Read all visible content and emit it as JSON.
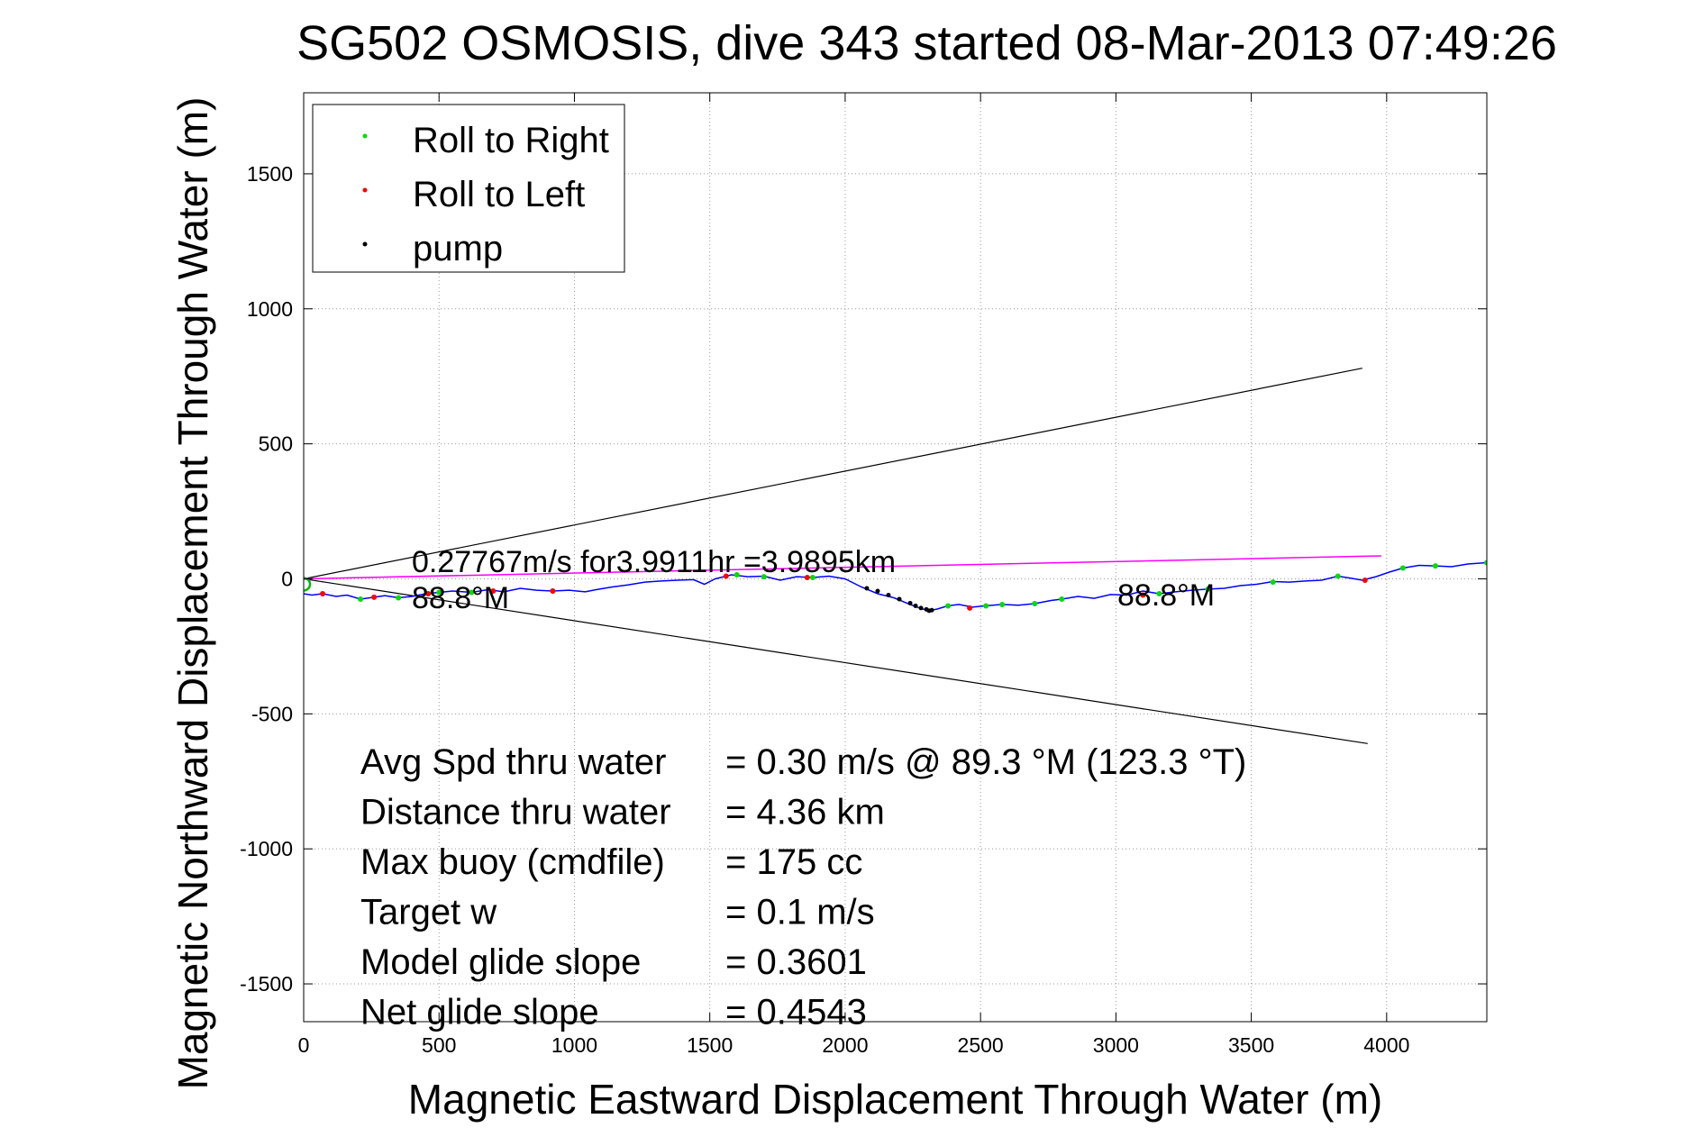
{
  "chart_data": {
    "type": "line",
    "title": "SG502 OSMOSIS, dive 343 started 08-Mar-2013 07:49:26",
    "xlabel": "Magnetic Eastward Displacement Through Water (m)",
    "ylabel": "Magnetic Northward Displacement Through Water (m)",
    "xlim": [
      0,
      4370
    ],
    "ylim": [
      -1640,
      1800
    ],
    "xticks": [
      0,
      500,
      1000,
      1500,
      2000,
      2500,
      3000,
      3500,
      4000
    ],
    "yticks": [
      -1500,
      -1000,
      -500,
      0,
      500,
      1000,
      1500
    ],
    "grid": true,
    "legend_position": "top-left",
    "legend": [
      {
        "label": "Roll to Right",
        "color": "#00dd00"
      },
      {
        "label": "Roll to Left",
        "color": "#ff0000"
      },
      {
        "label": "pump",
        "color": "#000000"
      }
    ],
    "colors": {
      "track": "#0000ff",
      "roll_right": "#00dd00",
      "roll_left": "#ff0000",
      "pump": "#000000",
      "heading": "#ff00ff",
      "cone": "#000000",
      "start_marker": "#00bb00"
    },
    "track": {
      "x": [
        0,
        30,
        70,
        120,
        160,
        210,
        260,
        300,
        350,
        400,
        450,
        500,
        550,
        620,
        680,
        740,
        800,
        860,
        920,
        980,
        1040,
        1080,
        1140,
        1200,
        1260,
        1320,
        1380,
        1440,
        1480,
        1520,
        1580,
        1640,
        1700,
        1760,
        1820,
        1880,
        1940,
        2000,
        2060,
        2120,
        2180,
        2240,
        2280,
        2310,
        2340,
        2380,
        2420,
        2470,
        2520,
        2580,
        2640,
        2700,
        2760,
        2800,
        2860,
        2920,
        2980,
        3040,
        3100,
        3160,
        3220,
        3280,
        3340,
        3400,
        3460,
        3520,
        3580,
        3640,
        3700,
        3760,
        3820,
        3870,
        3910,
        3960,
        4010,
        4060,
        4120,
        4180,
        4240,
        4300,
        4370
      ],
      "y": [
        -55,
        -60,
        -55,
        -65,
        -60,
        -75,
        -68,
        -62,
        -70,
        -65,
        -55,
        -50,
        -45,
        -50,
        -40,
        -48,
        -35,
        -42,
        -45,
        -42,
        -48,
        -40,
        -30,
        -22,
        -12,
        -8,
        -5,
        -3,
        -20,
        0,
        15,
        8,
        10,
        -5,
        8,
        5,
        10,
        0,
        -30,
        -55,
        -70,
        -95,
        -110,
        -118,
        -112,
        -100,
        -95,
        -105,
        -100,
        -95,
        -98,
        -92,
        -80,
        -75,
        -65,
        -72,
        -58,
        -60,
        -45,
        -55,
        -48,
        -42,
        -38,
        -35,
        -25,
        -20,
        -10,
        -12,
        -8,
        -5,
        10,
        2,
        -5,
        8,
        25,
        40,
        50,
        48,
        45,
        55,
        60
      ]
    },
    "roll_right": {
      "x": [
        210,
        350,
        500,
        620,
        920,
        1600,
        1700,
        1880,
        2380,
        2520,
        2580,
        2700,
        2800,
        3160,
        3340,
        3580,
        3820,
        4060,
        4180,
        4370
      ],
      "y": [
        -75,
        -70,
        -50,
        -50,
        -45,
        15,
        8,
        5,
        -100,
        -100,
        -95,
        -92,
        -75,
        -55,
        -38,
        -12,
        10,
        40,
        48,
        60
      ]
    },
    "roll_left": {
      "x": [
        70,
        260,
        460,
        700,
        920,
        1560,
        1860,
        2460,
        3100,
        3920
      ],
      "y": [
        -55,
        -68,
        -55,
        -45,
        -45,
        10,
        5,
        -108,
        -60,
        -5
      ]
    },
    "pump": {
      "x": [
        2080,
        2120,
        2160,
        2200,
        2240,
        2260,
        2280,
        2300,
        2310,
        2320
      ],
      "y": [
        -35,
        -45,
        -60,
        -75,
        -90,
        -100,
        -108,
        -113,
        -118,
        -116
      ]
    },
    "heading_line": {
      "x": [
        0,
        3980
      ],
      "y": [
        0,
        85
      ]
    },
    "cone_upper": {
      "x": [
        0,
        3910
      ],
      "y": [
        0,
        780
      ]
    },
    "cone_lower": {
      "x": [
        0,
        3930
      ],
      "y": [
        0,
        -610
      ]
    },
    "annotations": {
      "speed_label": "0.27767m/s for3.9911hr =3.9895km",
      "heading_label_left": "88.8°M",
      "heading_label_right": "88.8°M"
    },
    "stats": [
      {
        "label": "Avg Spd thru water",
        "value": "=  0.30 m/s @  89.3 °M (123.3 °T)"
      },
      {
        "label": "Distance thru water",
        "value": "=  4.36 km"
      },
      {
        "label": "Max buoy (cmdfile)",
        "value": "= 175 cc"
      },
      {
        "label": "Target w",
        "value": "= 0.1 m/s"
      },
      {
        "label": "Model glide slope",
        "value": "= 0.3601"
      },
      {
        "label": "Net glide slope",
        "value": "= 0.4543"
      }
    ]
  }
}
